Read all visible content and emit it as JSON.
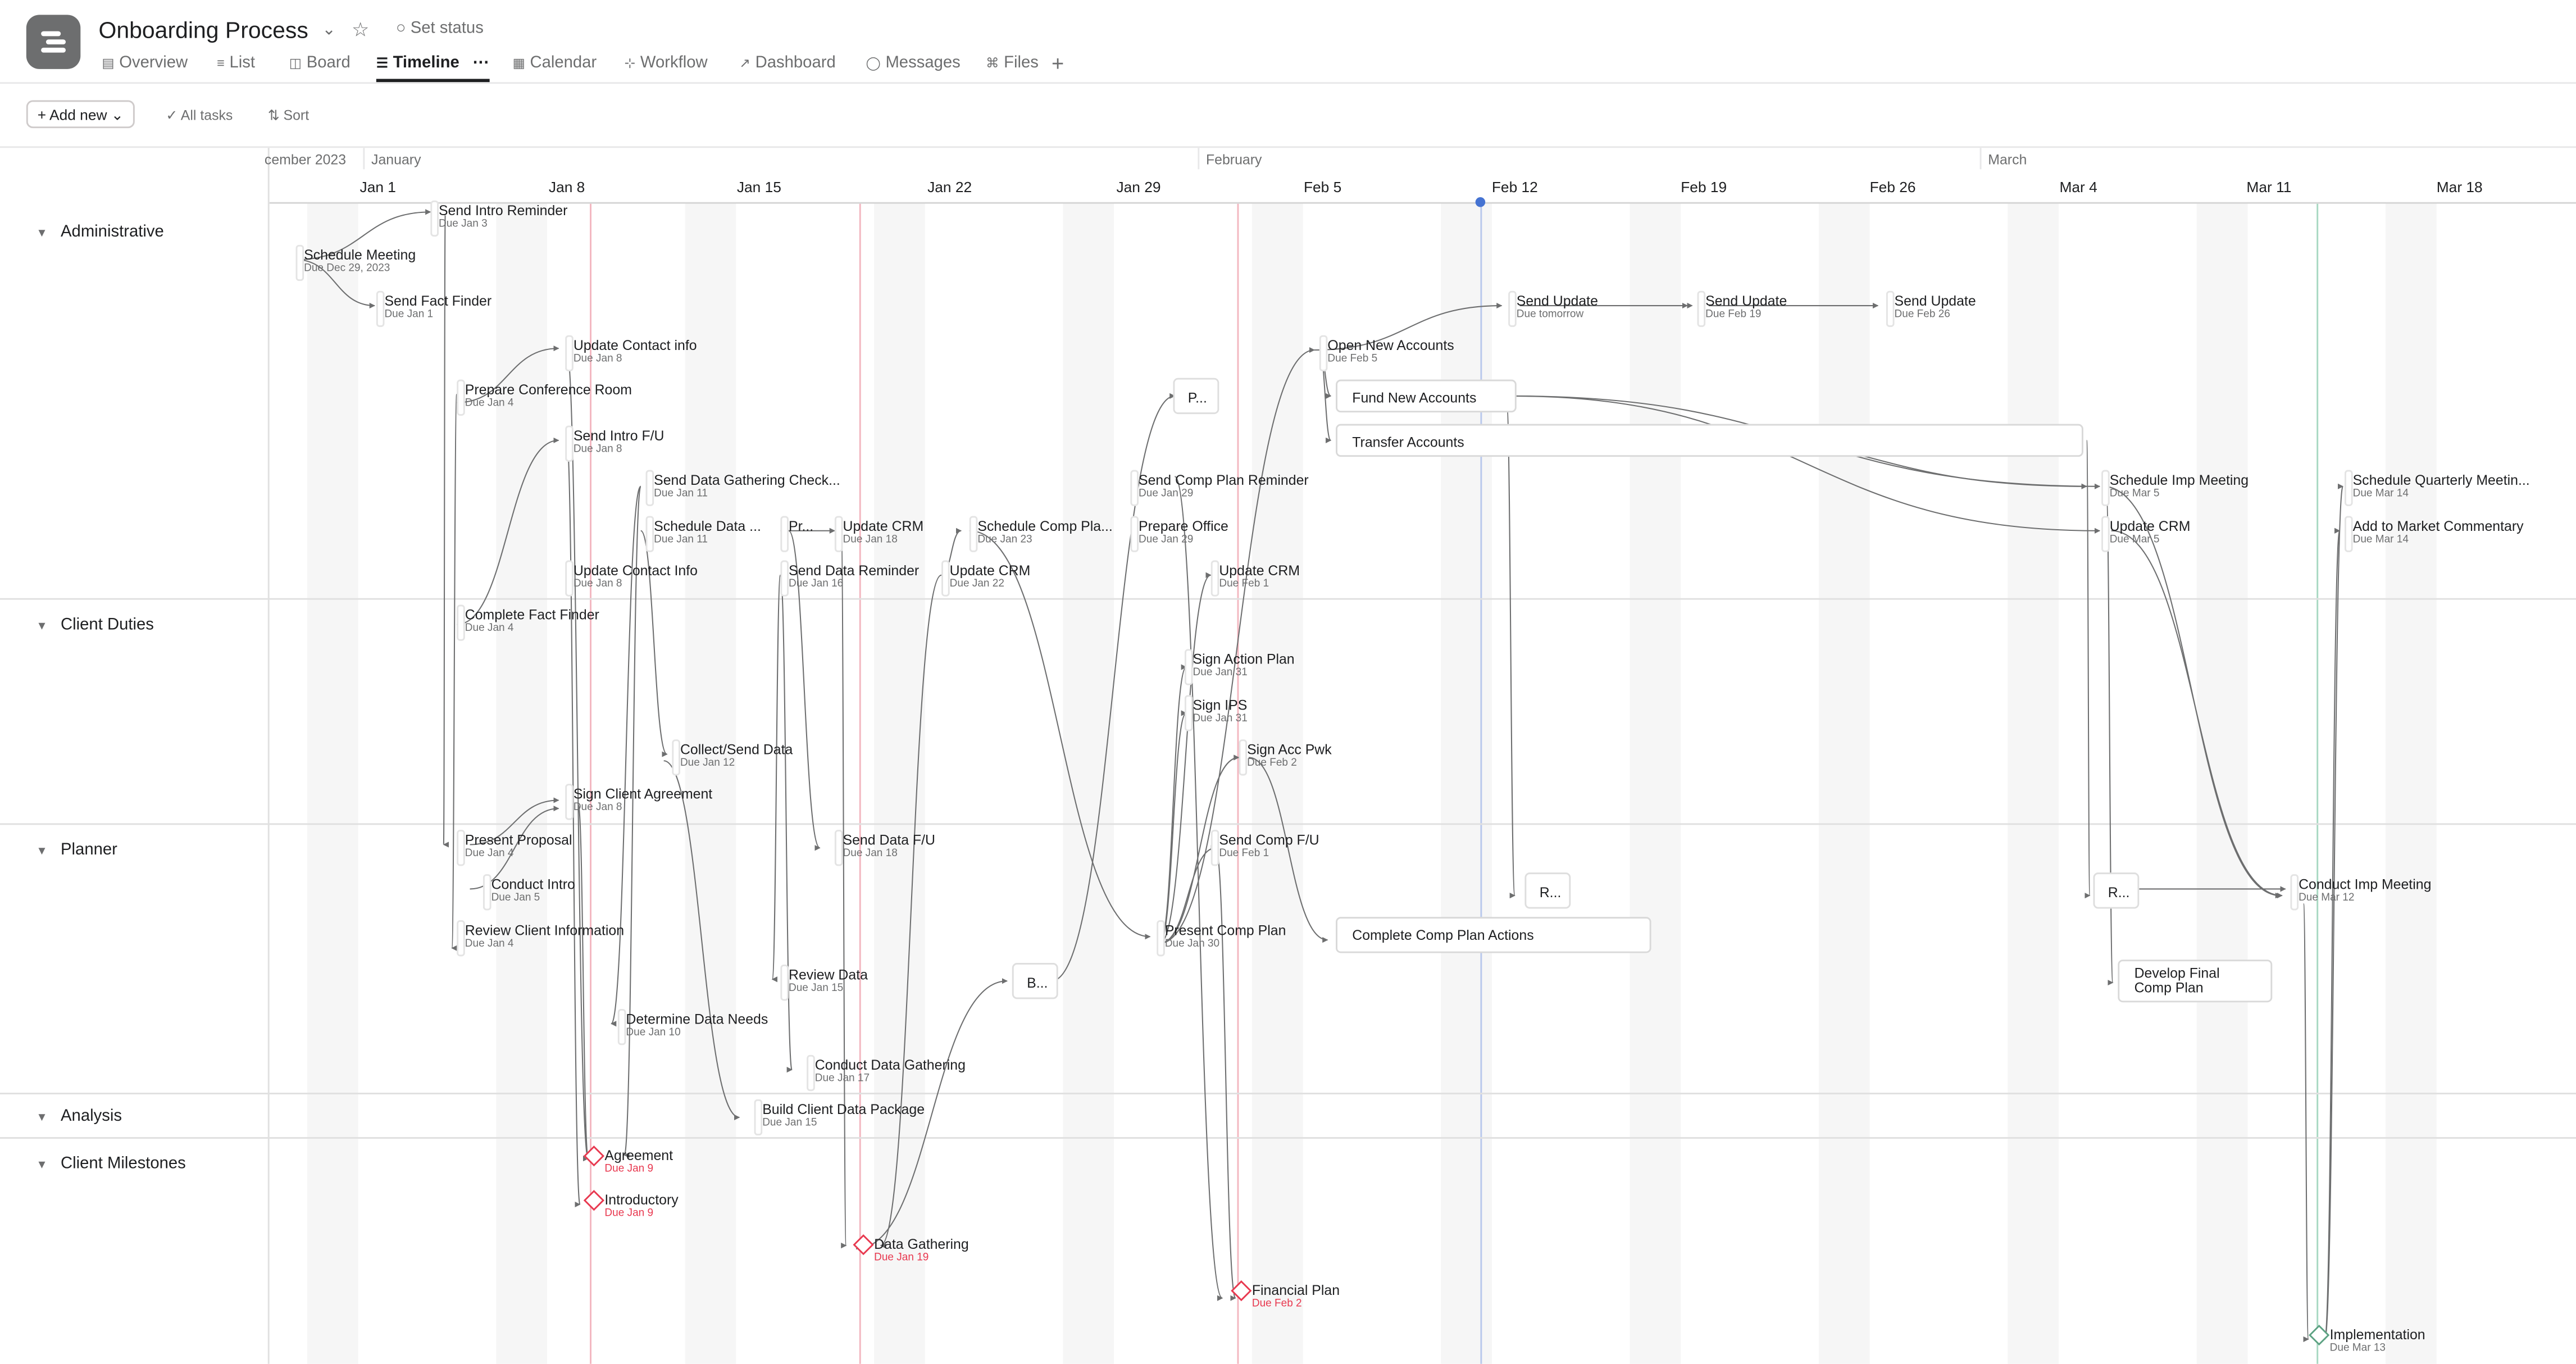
{
  "project": {
    "title": "Onboarding Process",
    "set_status": "Set status"
  },
  "tabs": [
    {
      "label": "Overview",
      "icon": "overview-icon",
      "active": false
    },
    {
      "label": "List",
      "icon": "list-icon",
      "active": false
    },
    {
      "label": "Board",
      "icon": "board-icon",
      "active": false
    },
    {
      "label": "Timeline",
      "icon": "timeline-icon",
      "active": true
    },
    {
      "label": "Calendar",
      "icon": "calendar-icon",
      "active": false
    },
    {
      "label": "Workflow",
      "icon": "workflow-icon",
      "active": false
    },
    {
      "label": "Dashboard",
      "icon": "dashboard-icon",
      "active": false
    },
    {
      "label": "Messages",
      "icon": "messages-icon",
      "active": false
    },
    {
      "label": "Files",
      "icon": "files-icon",
      "active": false
    }
  ],
  "toolbar": {
    "add_new": "Add new",
    "all_tasks": "All tasks",
    "sort": "Sort"
  },
  "timeline": {
    "months": [
      "cember 2023",
      "January",
      "February",
      "March"
    ],
    "weeks": [
      "Jan 1",
      "Jan 8",
      "Jan 15",
      "Jan 22",
      "Jan 29",
      "Feb 5",
      "Feb 12",
      "Feb 19",
      "Feb 26",
      "Mar 4",
      "Mar 11",
      "Mar 18"
    ]
  },
  "sections": [
    "Administrative",
    "Client Duties",
    "Planner",
    "Analysis",
    "Client Milestones"
  ],
  "tasks": [
    {
      "name": "Send Intro Reminder",
      "due": "Due Jan 3"
    },
    {
      "name": "Schedule Meeting",
      "due": "Due Dec 29, 2023"
    },
    {
      "name": "Send Fact Finder",
      "due": "Due Jan 1"
    },
    {
      "name": "Update Contact info",
      "due": "Due Jan 8"
    },
    {
      "name": "Prepare Conference Room",
      "due": "Due Jan 4"
    },
    {
      "name": "Send Intro F/U",
      "due": "Due Jan 8"
    },
    {
      "name": "Send Data Gathering Check...",
      "due": "Due Jan 11"
    },
    {
      "name": "Schedule Data ...",
      "due": "Due Jan 11"
    },
    {
      "name": "Pr...",
      "due": ""
    },
    {
      "name": "Update CRM",
      "due": "Due Jan 18"
    },
    {
      "name": "Schedule Comp Pla...",
      "due": "Due Jan 23"
    },
    {
      "name": "Update Contact Info",
      "due": "Due Jan 8"
    },
    {
      "name": "Send Data Reminder",
      "due": "Due Jan 16"
    },
    {
      "name": "Update CRM",
      "due": "Due Jan 22"
    },
    {
      "name": "Send Comp Plan Reminder",
      "due": "Due Jan 29"
    },
    {
      "name": "Prepare Office",
      "due": "Due Jan 29"
    },
    {
      "name": "Update CRM",
      "due": "Due Feb 1"
    },
    {
      "name": "Open New Accounts",
      "due": "Due Feb 5"
    },
    {
      "name": "Send Update",
      "due": "Due tomorrow"
    },
    {
      "name": "Send Update",
      "due": "Due Feb 19"
    },
    {
      "name": "Send Update",
      "due": "Due Feb 26"
    },
    {
      "name": "Schedule Imp Meeting",
      "due": "Due Mar 5"
    },
    {
      "name": "Update CRM",
      "due": "Due Mar 5"
    },
    {
      "name": "Schedule Quarterly Meetin...",
      "due": "Due Mar 14"
    },
    {
      "name": "Add to Market Commentary",
      "due": "Due Mar 14"
    },
    {
      "name": "Complete Fact Finder",
      "due": "Due Jan 4"
    },
    {
      "name": "Collect/Send Data",
      "due": "Due Jan 12"
    },
    {
      "name": "Sign Client Agreement",
      "due": "Due Jan 8"
    },
    {
      "name": "Sign Action Plan",
      "due": "Due Jan 31"
    },
    {
      "name": "Sign IPS",
      "due": "Due Jan 31"
    },
    {
      "name": "Sign Acc Pwk",
      "due": "Due Feb 2"
    },
    {
      "name": "Present Proposal",
      "due": "Due Jan 4"
    },
    {
      "name": "Conduct Intro",
      "due": "Due Jan 5"
    },
    {
      "name": "Review Client Information",
      "due": "Due Jan 4"
    },
    {
      "name": "Send Data F/U",
      "due": "Due Jan 18"
    },
    {
      "name": "Review Data",
      "due": "Due Jan 15"
    },
    {
      "name": "Determine Data Needs",
      "due": "Due Jan 10"
    },
    {
      "name": "Conduct Data Gathering",
      "due": "Due Jan 17"
    },
    {
      "name": "Send Comp F/U",
      "due": "Due Feb 1"
    },
    {
      "name": "Present Comp Plan",
      "due": "Due Jan 30"
    },
    {
      "name": "Conduct Imp Meeting",
      "due": "Due Mar 12"
    },
    {
      "name": "Build Client Data Package",
      "due": "Due Jan 15"
    }
  ],
  "bars": [
    "Fund New Accounts",
    "Transfer Accounts",
    "Complete Comp Plan Actions",
    "Develop Final Comp Plan"
  ],
  "chips": [
    "P...",
    "B...",
    "R...",
    "R..."
  ],
  "milestones": [
    {
      "name": "Agreement",
      "due": "Due Jan 9",
      "color": "#e8384f"
    },
    {
      "name": "Introductory",
      "due": "Due Jan 9",
      "color": "#e8384f"
    },
    {
      "name": "Data Gathering",
      "due": "Due Jan 19",
      "color": "#e8384f"
    },
    {
      "name": "Financial Plan",
      "due": "Due Feb 2",
      "color": "#e8384f"
    },
    {
      "name": "Implementation",
      "due": "Due Mar 13",
      "color": "#5da283"
    }
  ],
  "colors": {
    "accent": "#4573d2",
    "overdue": "#e8384f",
    "done": "#5da283"
  }
}
